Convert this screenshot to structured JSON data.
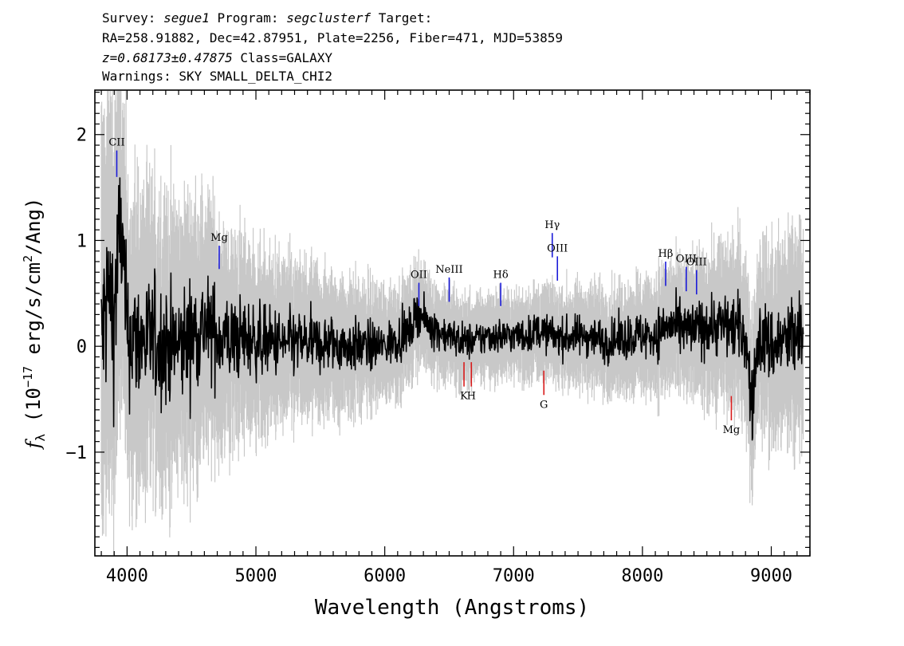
{
  "header": {
    "line1": {
      "survey_label": "Survey: ",
      "survey": "segue1",
      "program_label": " Program: ",
      "program": "segclusterf",
      "target_label": " Target:"
    },
    "line2": "RA=258.91882, Dec=42.87951, Plate=2256, Fiber=471, MJD=53859",
    "line3": {
      "z": "z=0.68173±0.47875",
      "class": " Class=GALAXY"
    },
    "line4": "Warnings: SKY SMALL_DELTA_CHI2"
  },
  "chart_data": {
    "type": "line",
    "xlabel": "Wavelength (Angstroms)",
    "ylabel": "f_λ (10^-17 erg/s/cm^2/Ang)",
    "xlim": [
      3750,
      9300
    ],
    "ylim": [
      -1.98,
      2.42
    ],
    "x_ticks": [
      4000,
      5000,
      6000,
      7000,
      8000,
      9000
    ],
    "y_ticks": [
      -1,
      0,
      1,
      2
    ],
    "series": [
      {
        "role": "flux",
        "color": "#000000",
        "x": [
          3800,
          3850,
          3900,
          3950,
          4000,
          4100,
          4200,
          4300,
          4400,
          4500,
          4600,
          4700,
          4800,
          4900,
          5000,
          5200,
          5400,
          5600,
          5800,
          6000,
          6200,
          6260,
          6300,
          6400,
          6500,
          6600,
          6700,
          6800,
          6900,
          7000,
          7100,
          7200,
          7300,
          7400,
          7500,
          7600,
          7700,
          7800,
          7900,
          8000,
          8100,
          8200,
          8300,
          8400,
          8500,
          8600,
          8700,
          8800,
          8850,
          8900,
          9000,
          9100,
          9200,
          9250
        ],
        "y": [
          0.0,
          0.5,
          0.3,
          1.2,
          0.1,
          0.05,
          0.05,
          0.0,
          0.0,
          0.1,
          0.2,
          0.1,
          0.05,
          0.08,
          0.05,
          0.02,
          0.03,
          0.02,
          0.0,
          0.0,
          0.15,
          0.35,
          0.25,
          0.15,
          0.1,
          0.05,
          0.05,
          0.1,
          0.1,
          0.1,
          0.1,
          0.15,
          0.1,
          0.08,
          0.1,
          0.1,
          0.05,
          0.05,
          0.1,
          0.1,
          0.1,
          0.2,
          0.15,
          0.15,
          0.2,
          0.2,
          0.2,
          0.1,
          -0.6,
          0.1,
          0.0,
          0.05,
          0.1,
          0.0
        ]
      },
      {
        "role": "error",
        "color": "#c8c8c8",
        "x": [
          3800,
          3900,
          4000,
          4500,
          5000,
          5500,
          6000,
          6500,
          7000,
          7500,
          8000,
          8500,
          9000,
          9250
        ],
        "y": [
          1.4,
          1.3,
          1.0,
          0.85,
          0.55,
          0.45,
          0.35,
          0.28,
          0.26,
          0.3,
          0.35,
          0.45,
          0.6,
          0.7
        ]
      }
    ],
    "lines": [
      {
        "label": "CII",
        "x": 3920,
        "color": "blue",
        "y_top": 1.85,
        "y_bottom": 1.6
      },
      {
        "label": "Mg",
        "x": 4715,
        "color": "blue",
        "y_top": 0.95,
        "y_bottom": 0.73
      },
      {
        "label": "OII",
        "x": 6265,
        "color": "blue",
        "y_top": 0.6,
        "y_bottom": 0.38
      },
      {
        "label": "NeIII",
        "x": 6500,
        "color": "blue",
        "y_top": 0.65,
        "y_bottom": 0.42
      },
      {
        "label": "Hδ",
        "x": 6900,
        "color": "blue",
        "y_top": 0.6,
        "y_bottom": 0.38
      },
      {
        "label": "Hγ",
        "x": 7300,
        "color": "blue",
        "y_top": 1.07,
        "y_bottom": 0.84
      },
      {
        "label": "OIII",
        "x": 7340,
        "color": "blue",
        "y_top": 0.85,
        "y_bottom": 0.62
      },
      {
        "label": "Hβ",
        "x": 8180,
        "color": "blue",
        "y_top": 0.8,
        "y_bottom": 0.57
      },
      {
        "label": "OIII",
        "x": 8340,
        "color": "blue",
        "y_top": 0.75,
        "y_bottom": 0.52
      },
      {
        "label": "OIII",
        "x": 8420,
        "color": "blue",
        "y_top": 0.72,
        "y_bottom": 0.49
      },
      {
        "label": "K",
        "x": 6615,
        "color": "red",
        "y_top": -0.15,
        "y_bottom": -0.38
      },
      {
        "label": "H",
        "x": 6672,
        "color": "red",
        "y_top": -0.15,
        "y_bottom": -0.38
      },
      {
        "label": "G",
        "x": 7235,
        "color": "red",
        "y_top": -0.23,
        "y_bottom": -0.46
      },
      {
        "label": "Mg",
        "x": 8690,
        "color": "red",
        "y_top": -0.47,
        "y_bottom": -0.7
      }
    ]
  }
}
